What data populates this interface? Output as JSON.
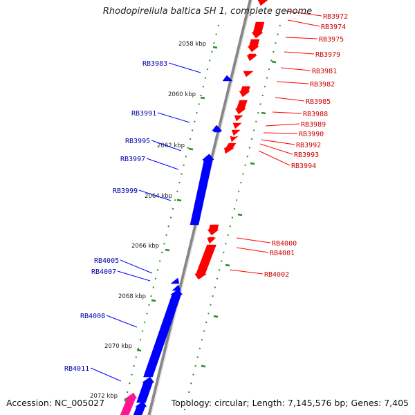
{
  "title": "Rhodopirellula baltica SH 1, complete genome",
  "footer": {
    "accession": "Accession: NC_005027",
    "topology": "Topology: circular; Length: 7,145,576 bp; Genes: 7,405"
  },
  "colors": {
    "forward_gene": "#ff0000",
    "reverse_gene": "#0000ff",
    "rna_gene": "#ff1493",
    "forward_label": "#cc0000",
    "reverse_label": "#0000aa",
    "ruler": "#228b22",
    "backbone": "#888888"
  },
  "ruler_labels": [
    "2058 kbp",
    "2060 kbp",
    "2062 kbp",
    "2064 kbp",
    "2066 kbp",
    "2068 kbp",
    "2070 kbp",
    "2072 kbp"
  ],
  "forward_genes": [
    {
      "label": "RB3972",
      "track": 0
    },
    {
      "label": "RB3974",
      "track": 1
    },
    {
      "label": "RB3975",
      "track": 2
    },
    {
      "label": "RB3979",
      "track": 3
    },
    {
      "label": "RB3981",
      "track": 4
    },
    {
      "label": "RB3982",
      "track": 5
    },
    {
      "label": "RB3985",
      "track": 6
    },
    {
      "label": "RB3988",
      "track": 7
    },
    {
      "label": "RB3989",
      "track": 8
    },
    {
      "label": "RB3990",
      "track": 9
    },
    {
      "label": "RB3992",
      "track": 10
    },
    {
      "label": "RB3993",
      "track": 11
    },
    {
      "label": "RB3994",
      "track": 12
    },
    {
      "label": "RB4000",
      "track": 13
    },
    {
      "label": "RB4001",
      "track": 14
    },
    {
      "label": "RB4002",
      "track": 15
    }
  ],
  "reverse_genes": [
    {
      "label": "RB3983",
      "track": 0
    },
    {
      "label": "RB3991",
      "track": 1
    },
    {
      "label": "RB3995",
      "track": 2
    },
    {
      "label": "RB3997",
      "track": 3
    },
    {
      "label": "RB3999",
      "track": 4
    },
    {
      "label": "RB4005",
      "track": 5
    },
    {
      "label": "RB4007",
      "track": 6
    },
    {
      "label": "RB4008",
      "track": 7
    },
    {
      "label": "RB4011",
      "track": 8
    }
  ]
}
